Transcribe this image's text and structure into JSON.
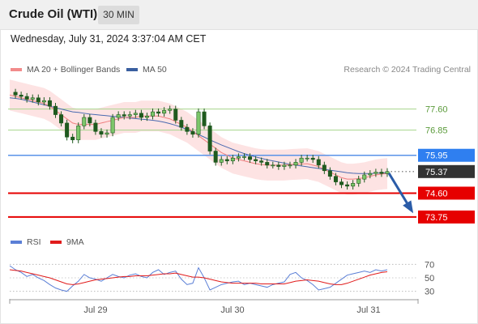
{
  "header": {
    "title": "Crude Oil (WTI)",
    "timeframe": "30 MIN"
  },
  "datetime": "Wednesday, July 31, 2024 3:37:04 AM CET",
  "legend": {
    "items": [
      {
        "label": "MA 20 + Bollinger Bands",
        "color": "#f28b8b"
      },
      {
        "label": "MA 50",
        "color": "#3a5fa0"
      }
    ],
    "copyright": "Research © 2024 Trading Central"
  },
  "indicator_legend": {
    "items": [
      {
        "label": "RSI",
        "color": "#5b7fd6"
      },
      {
        "label": "9MA",
        "color": "#e11b1b"
      }
    ]
  },
  "chart_data": [
    {
      "type": "line",
      "x_labels": [
        "Jul 29",
        "Jul 30",
        "Jul 31"
      ],
      "ylim": [
        73.4,
        78.6
      ],
      "levels": [
        {
          "value": 77.6,
          "label": "77.60",
          "color": "#8bc26a",
          "style": "text-only"
        },
        {
          "value": 76.85,
          "label": "76.85",
          "color": "#8bc26a",
          "style": "text-only"
        },
        {
          "value": 75.95,
          "label": "75.95",
          "color": "#2f7ff0",
          "style": "tag"
        },
        {
          "value": 75.37,
          "label": "75.37",
          "color": "#333333",
          "style": "tag"
        },
        {
          "value": 74.6,
          "label": "74.60",
          "color": "#e60000",
          "style": "tag"
        },
        {
          "value": 73.75,
          "label": "73.75",
          "color": "#e60000",
          "style": "tag"
        }
      ],
      "series": [
        {
          "name": "Crude Oil (WTI)",
          "values": [
            78.2,
            78.1,
            78.05,
            77.95,
            78.0,
            77.85,
            77.9,
            77.7,
            77.4,
            77.1,
            76.6,
            76.5,
            77.0,
            77.3,
            77.1,
            76.8,
            76.7,
            76.75,
            77.3,
            77.4,
            77.35,
            77.4,
            77.45,
            77.3,
            77.35,
            77.5,
            77.45,
            77.55,
            77.6,
            77.2,
            76.95,
            76.8,
            76.7,
            77.5,
            77.0,
            76.1,
            75.7,
            75.8,
            75.75,
            75.85,
            75.9,
            75.9,
            75.8,
            75.75,
            75.7,
            75.6,
            75.6,
            75.55,
            75.6,
            75.6,
            75.7,
            75.85,
            75.85,
            75.8,
            75.6,
            75.4,
            75.2,
            75.0,
            74.9,
            74.85,
            74.95,
            75.1,
            75.25,
            75.3,
            75.35,
            75.3,
            75.37
          ]
        },
        {
          "name": "MA 20",
          "values": [
            78.1,
            78.05,
            78.0,
            77.95,
            77.9,
            77.85,
            77.8,
            77.7,
            77.55,
            77.4,
            77.25,
            77.1,
            77.05,
            77.05,
            77.05,
            77.05,
            77.1,
            77.15,
            77.2,
            77.25,
            77.3,
            77.3,
            77.3,
            77.35,
            77.35,
            77.35,
            77.35,
            77.3,
            77.25,
            77.15,
            77.05,
            76.95,
            76.8,
            76.65,
            76.5,
            76.35,
            76.2,
            76.05,
            75.95,
            75.85,
            75.8,
            75.75,
            75.7,
            75.65,
            75.62,
            75.6,
            75.6,
            75.6,
            75.6,
            75.62,
            75.63,
            75.64,
            75.65,
            75.6,
            75.55,
            75.45,
            75.35,
            75.25,
            75.15,
            75.1,
            75.1,
            75.12,
            75.15,
            75.2,
            75.25,
            75.28,
            75.3
          ]
        },
        {
          "name": "MA 50",
          "values": [
            78.0,
            77.98,
            77.95,
            77.9,
            77.85,
            77.8,
            77.75,
            77.7,
            77.65,
            77.6,
            77.55,
            77.5,
            77.48,
            77.45,
            77.42,
            77.4,
            77.38,
            77.36,
            77.34,
            77.32,
            77.3,
            77.28,
            77.26,
            77.24,
            77.22,
            77.2,
            77.17,
            77.13,
            77.08,
            77.02,
            76.95,
            76.87,
            76.78,
            76.69,
            76.6,
            76.5,
            76.41,
            76.32,
            76.24,
            76.16,
            76.08,
            76.01,
            75.95,
            75.89,
            75.84,
            75.79,
            75.75,
            75.71,
            75.67,
            75.63,
            75.6,
            75.57,
            75.54,
            75.51,
            75.48,
            75.45,
            75.42,
            75.39,
            75.36,
            75.33,
            75.31,
            75.3,
            75.3,
            75.3,
            75.31,
            75.32,
            75.33
          ]
        }
      ]
    },
    {
      "type": "line",
      "title": "RSI",
      "ylim": [
        20,
        80
      ],
      "y_ticks": [
        70,
        50,
        30
      ],
      "series": [
        {
          "name": "RSI",
          "values": [
            68,
            62,
            58,
            52,
            55,
            50,
            46,
            40,
            35,
            32,
            30,
            38,
            45,
            55,
            50,
            48,
            45,
            50,
            55,
            52,
            50,
            54,
            56,
            52,
            50,
            58,
            62,
            55,
            58,
            60,
            48,
            40,
            42,
            65,
            50,
            32,
            36,
            40,
            42,
            44,
            45,
            40,
            42,
            40,
            38,
            36,
            40,
            42,
            44,
            55,
            58,
            50,
            46,
            40,
            32,
            34,
            36,
            42,
            48,
            54,
            56,
            58,
            60,
            58,
            62,
            60,
            62
          ]
        },
        {
          "name": "9MA",
          "values": [
            62,
            61,
            60,
            58,
            56,
            54,
            52,
            50,
            47,
            44,
            41,
            40,
            41,
            43,
            45,
            47,
            48,
            49,
            50,
            51,
            52,
            52,
            53,
            53,
            53,
            54,
            55,
            56,
            56,
            57,
            55,
            53,
            51,
            51,
            50,
            48,
            46,
            44,
            43,
            42,
            42,
            42,
            42,
            42,
            41,
            41,
            41,
            41,
            41,
            43,
            45,
            46,
            47,
            46,
            45,
            43,
            41,
            40,
            40,
            42,
            45,
            48,
            51,
            54,
            56,
            58,
            59
          ]
        }
      ]
    }
  ]
}
